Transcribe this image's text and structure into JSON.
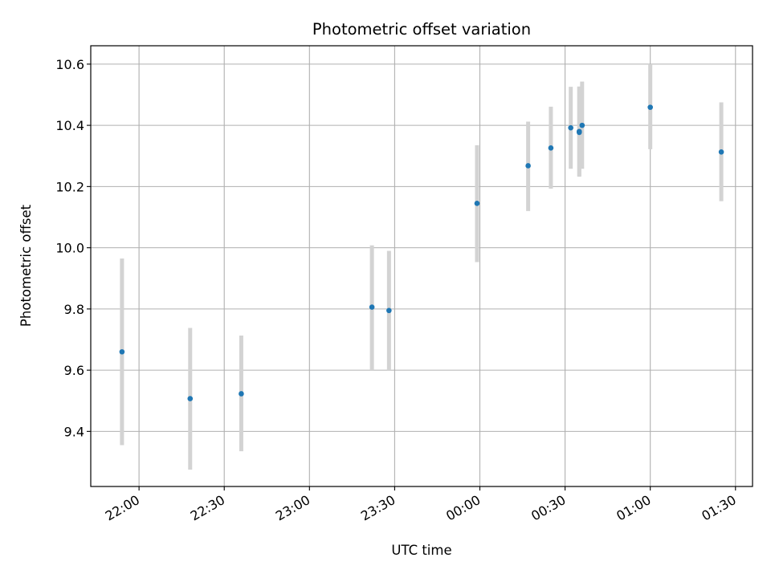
{
  "chart_data": {
    "type": "scatter",
    "title": "Photometric offset variation",
    "xlabel": "UTC time",
    "ylabel": "Photometric offset",
    "xlim": [
      "21:43",
      "01:36"
    ],
    "ylim": [
      9.22,
      10.66
    ],
    "x_ticks": [
      "22:00",
      "22:30",
      "23:00",
      "23:30",
      "00:00",
      "00:30",
      "01:00",
      "01:30"
    ],
    "y_ticks": [
      "9.4",
      "9.6",
      "9.8",
      "10.0",
      "10.2",
      "10.4",
      "10.6"
    ],
    "grid": true,
    "marker_color": "#1f77b4",
    "errorbar_color": "#d3d3d3",
    "points": [
      {
        "x": "21:54",
        "y": 9.66,
        "ylow": 9.355,
        "yhigh": 9.965
      },
      {
        "x": "22:18",
        "y": 9.507,
        "ylow": 9.275,
        "yhigh": 9.738
      },
      {
        "x": "22:36",
        "y": 9.523,
        "ylow": 9.335,
        "yhigh": 9.713
      },
      {
        "x": "23:22",
        "y": 9.806,
        "ylow": 9.6,
        "yhigh": 10.008
      },
      {
        "x": "23:28",
        "y": 9.795,
        "ylow": 9.6,
        "yhigh": 9.99
      },
      {
        "x": "23:59",
        "y": 10.145,
        "ylow": 9.953,
        "yhigh": 10.335
      },
      {
        "x": "00:17",
        "y": 10.268,
        "ylow": 10.12,
        "yhigh": 10.412
      },
      {
        "x": "00:25",
        "y": 10.326,
        "ylow": 10.193,
        "yhigh": 10.461
      },
      {
        "x": "00:32",
        "y": 10.392,
        "ylow": 10.258,
        "yhigh": 10.526
      },
      {
        "x": "00:35",
        "y": 10.38,
        "ylow": 10.232,
        "yhigh": 10.527
      },
      {
        "x": "00:35",
        "y": 10.377,
        "ylow": 10.235,
        "yhigh": 10.525
      },
      {
        "x": "00:36",
        "y": 10.4,
        "ylow": 10.258,
        "yhigh": 10.543
      },
      {
        "x": "01:00",
        "y": 10.459,
        "ylow": 10.322,
        "yhigh": 10.6
      },
      {
        "x": "01:25",
        "y": 10.313,
        "ylow": 10.152,
        "yhigh": 10.475
      }
    ]
  }
}
